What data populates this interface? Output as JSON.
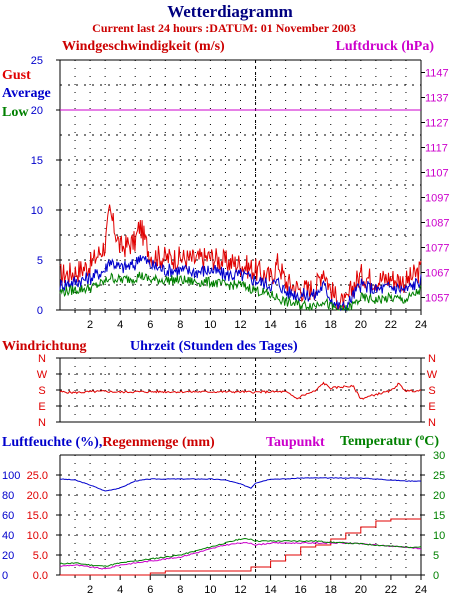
{
  "header": {
    "title": "Wetterdiagramm",
    "subtitle": "Current last 24 hours :DATUM: 01 November 2003"
  },
  "colors": {
    "title": "#000080",
    "subtitle": "#cc0000",
    "gust": "#e00000",
    "average": "#0000cc",
    "low": "#008000",
    "pressure": "#cc00cc",
    "axis": "#000000",
    "grid": "#000000"
  },
  "chart_data": [
    {
      "type": "line",
      "title": "",
      "labels": {
        "wind_speed": "Windgeschwindigkeit (m/s)",
        "pressure": "Luftdruck (hPa)",
        "legend": [
          "Gust",
          "Average",
          "Low"
        ]
      },
      "xlim": [
        0,
        24
      ],
      "x_ticks": [
        "2",
        "4",
        "6",
        "8",
        "10",
        "12",
        "14",
        "16",
        "18",
        "20",
        "22",
        "24"
      ],
      "ylim_left": [
        0,
        25
      ],
      "y_ticks_left": [
        "0",
        "5",
        "10",
        "15",
        "20",
        "25"
      ],
      "ylim_right": [
        1052,
        1152
      ],
      "y_ticks_right": [
        "1057",
        "1067",
        "1077",
        "1087",
        "1097",
        "1107",
        "1117",
        "1127",
        "1137",
        "1147"
      ],
      "grid": true,
      "marker_hour": 13,
      "pressure_hpa": 1132,
      "x": [
        0,
        1,
        2,
        3,
        3.3,
        4,
        5,
        5.3,
        6,
        7,
        8,
        9,
        10,
        11,
        12,
        13,
        14,
        14.5,
        15,
        16,
        17,
        17.5,
        18,
        18.5,
        19,
        19.5,
        20,
        21,
        22,
        23,
        24
      ],
      "series": [
        {
          "name": "Gust",
          "values": [
            3.5,
            3.8,
            4.5,
            6.5,
            9.8,
            6.2,
            6.8,
            8.5,
            5.5,
            5.2,
            5.2,
            5.0,
            5.3,
            4.8,
            4.6,
            4.0,
            3.2,
            4.8,
            2.8,
            2.0,
            2.2,
            4.2,
            2.0,
            0.8,
            0.5,
            2.5,
            3.5,
            3.0,
            3.2,
            2.8,
            4.0
          ]
        },
        {
          "name": "Average",
          "values": [
            2.5,
            2.8,
            3.2,
            4.0,
            5.0,
            4.2,
            4.5,
            5.5,
            4.5,
            4.0,
            4.0,
            3.8,
            4.0,
            3.5,
            3.5,
            3.0,
            2.5,
            2.8,
            1.8,
            1.5,
            1.5,
            2.5,
            1.2,
            0.3,
            0.2,
            1.5,
            2.5,
            2.0,
            2.3,
            2.0,
            3.0
          ]
        },
        {
          "name": "Low",
          "values": [
            1.8,
            2.0,
            2.2,
            2.8,
            3.3,
            3.0,
            3.2,
            3.5,
            3.0,
            3.0,
            3.0,
            2.8,
            2.8,
            2.5,
            2.5,
            2.0,
            1.5,
            1.2,
            0.8,
            0.5,
            0.5,
            1.0,
            0.3,
            0.0,
            0.0,
            0.5,
            1.2,
            1.0,
            1.2,
            1.0,
            2.0
          ]
        }
      ]
    },
    {
      "type": "line",
      "title": "",
      "labels": {
        "direction": "Windrichtung",
        "hours": "Uhrzeit (Stunden des Tages)"
      },
      "categories_y": [
        "N",
        "W",
        "S",
        "E",
        "N"
      ],
      "ylim": [
        0,
        360
      ],
      "x": [
        0,
        1,
        2,
        3,
        4,
        5,
        6,
        7,
        8,
        9,
        10,
        11,
        12,
        13,
        14,
        15,
        15.8,
        16,
        17,
        17.5,
        18,
        19,
        19.5,
        20,
        21,
        22,
        22.5,
        23,
        24
      ],
      "series": [
        {
          "name": "Windrichtung",
          "values": [
            170,
            165,
            170,
            172,
            168,
            170,
            170,
            170,
            170,
            170,
            170,
            170,
            170,
            168,
            170,
            170,
            130,
            145,
            175,
            220,
            190,
            200,
            200,
            130,
            155,
            175,
            215,
            175,
            175
          ]
        }
      ]
    },
    {
      "type": "line",
      "title": "",
      "labels": {
        "humidity_rain": "Luftfeuchte (%),Regenmenge (mm)",
        "dewpoint": "Taupunkt",
        "temperature": "Temperatur (",
        "temperature_unit": "C)",
        "degree_symbol": "o"
      },
      "y_ticks_left_humidity": [
        "0",
        "20",
        "40",
        "60",
        "80",
        "100"
      ],
      "y_ticks_left_rain": [
        "0.0",
        "5.0",
        "10.0",
        "15.0",
        "20.0",
        "25.0"
      ],
      "y_ticks_right": [
        "0",
        "5",
        "10",
        "15",
        "20",
        "25",
        "30"
      ],
      "ylim_right": [
        0,
        30
      ],
      "x": [
        0,
        1,
        2,
        3,
        4,
        5,
        6,
        7,
        8,
        9,
        10,
        11,
        12,
        12.7,
        13,
        14,
        15,
        16,
        17,
        18,
        19,
        20,
        21,
        22,
        23,
        24
      ],
      "series": [
        {
          "name": "Luftfeuchte (%)",
          "values": [
            96,
            95,
            90,
            84,
            87,
            94,
            96,
            96,
            96,
            96,
            96,
            95,
            91,
            87,
            92,
            96,
            96,
            97,
            97,
            97,
            97,
            97,
            96,
            95,
            94,
            94
          ]
        },
        {
          "name": "Regenmenge (mm)",
          "values": [
            0.0,
            0.0,
            0.0,
            0.0,
            0.0,
            0.0,
            0.5,
            1.0,
            1.0,
            1.0,
            1.0,
            1.0,
            1.0,
            2.0,
            2.0,
            3.5,
            5.0,
            7.0,
            7.5,
            9.0,
            10.5,
            12.0,
            13.5,
            14.0,
            14.0,
            14.0
          ]
        },
        {
          "name": "Taupunkt",
          "values": [
            2.2,
            2.5,
            2.0,
            1.5,
            2.5,
            3.0,
            3.5,
            4.0,
            4.5,
            5.5,
            6.5,
            7.5,
            8.0,
            8.0,
            7.5,
            8.0,
            8.0,
            8.0,
            8.0,
            8.0,
            8.0,
            7.8,
            7.5,
            7.2,
            7.0,
            6.5
          ]
        },
        {
          "name": "Temperatur",
          "values": [
            2.8,
            3.0,
            2.5,
            2.2,
            3.0,
            3.5,
            4.0,
            4.5,
            5.0,
            6.0,
            7.0,
            8.0,
            9.0,
            9.0,
            8.5,
            8.5,
            8.5,
            8.5,
            8.5,
            8.2,
            8.0,
            7.8,
            7.5,
            7.2,
            7.0,
            7.0
          ]
        }
      ]
    }
  ]
}
